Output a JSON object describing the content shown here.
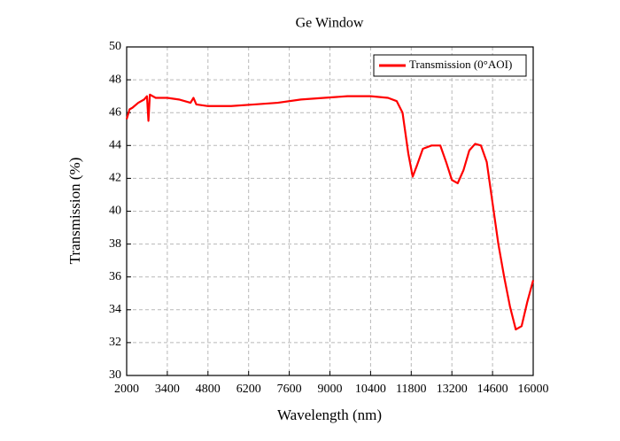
{
  "chart_data": {
    "type": "line",
    "title": "Ge Window",
    "xlabel": "Wavelength (nm)",
    "ylabel": "Transmission (%)",
    "x": [
      2000,
      2100,
      2200,
      2400,
      2600,
      2700,
      2750,
      2800,
      3000,
      3400,
      3800,
      4200,
      4300,
      4400,
      4800,
      5600,
      6400,
      7200,
      8000,
      8800,
      9600,
      10400,
      11000,
      11300,
      11500,
      11700,
      11850,
      12000,
      12200,
      12500,
      12800,
      13000,
      13200,
      13400,
      13600,
      13800,
      14000,
      14200,
      14400,
      14600,
      14800,
      15000,
      15200,
      15400,
      15600,
      15800,
      16000
    ],
    "series": [
      {
        "name": "Transmission (0°AOI)",
        "color": "#ff0000",
        "values": [
          45.6,
          46.2,
          46.3,
          46.6,
          46.8,
          47.0,
          45.5,
          47.1,
          46.9,
          46.9,
          46.8,
          46.6,
          46.9,
          46.5,
          46.4,
          46.4,
          46.5,
          46.6,
          46.8,
          46.9,
          47.0,
          47.0,
          46.9,
          46.7,
          46.0,
          43.5,
          42.1,
          42.8,
          43.8,
          44.0,
          44.0,
          43.0,
          41.9,
          41.7,
          42.5,
          43.7,
          44.1,
          44.0,
          43.0,
          40.5,
          38.0,
          36.0,
          34.2,
          32.8,
          33.0,
          34.5,
          35.8
        ]
      }
    ],
    "xlim": [
      2000,
      16000
    ],
    "xticks": [
      2000,
      3400,
      4800,
      6200,
      7600,
      9000,
      10400,
      11800,
      13200,
      14600,
      16000
    ],
    "ylim": [
      30,
      50
    ],
    "yticks": [
      30,
      32,
      34,
      36,
      38,
      40,
      42,
      44,
      46,
      48,
      50
    ],
    "grid": true,
    "legend": "upper right"
  }
}
